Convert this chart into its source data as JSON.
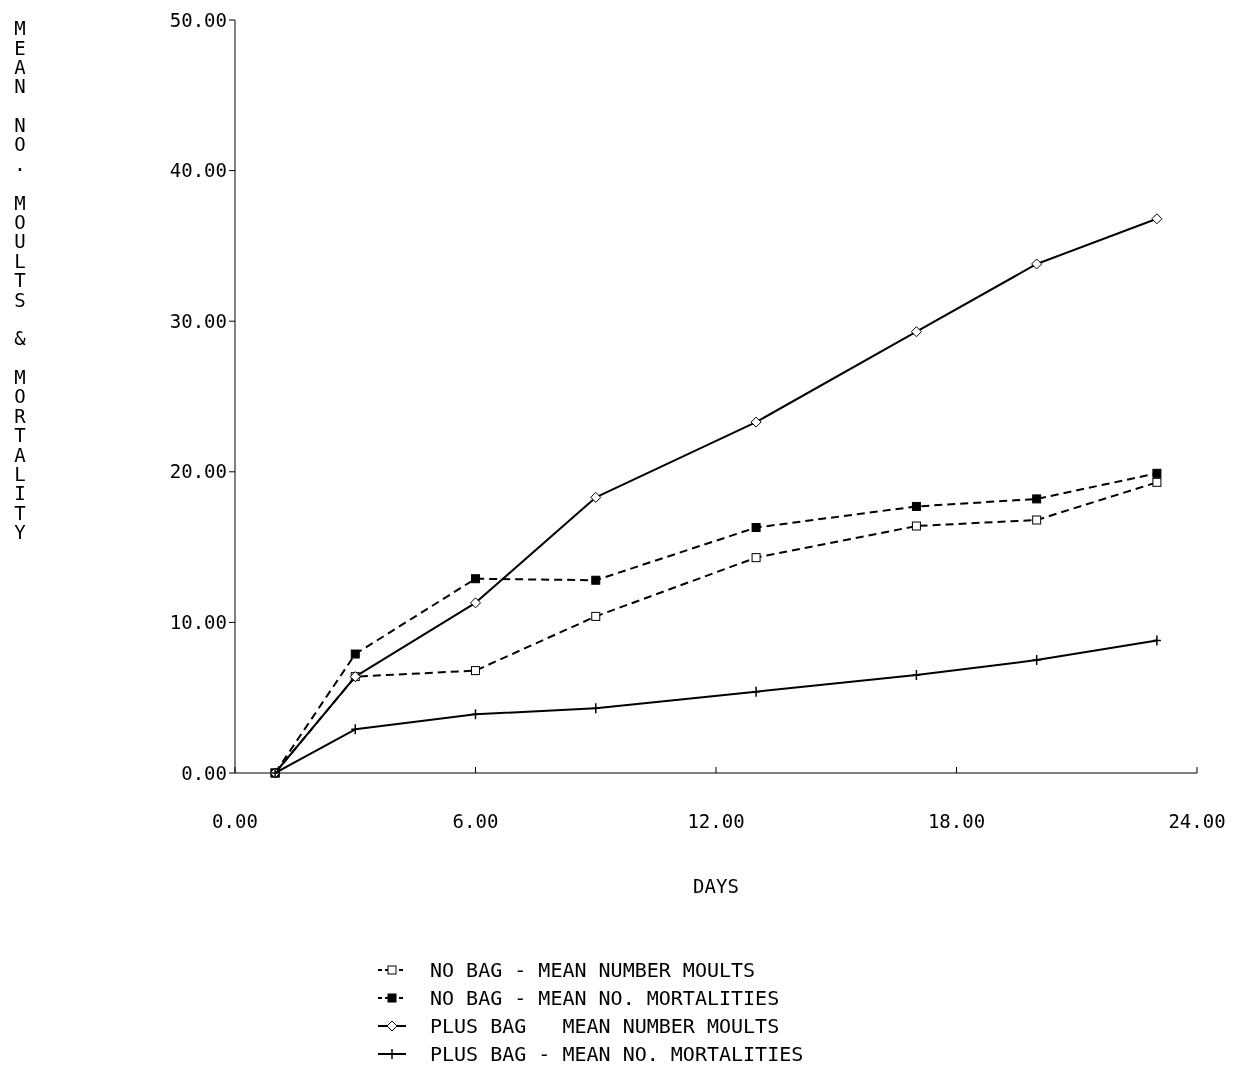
{
  "chart_data": {
    "type": "line",
    "xlabel": "DAYS",
    "ylabel": "MEAN NO. MOULTS & MORTALITY",
    "xlim": [
      0,
      24
    ],
    "ylim": [
      0,
      50
    ],
    "xticks": [
      {
        "value": 0,
        "label": "0.00"
      },
      {
        "value": 6,
        "label": "6.00"
      },
      {
        "value": 12,
        "label": "12.00"
      },
      {
        "value": 18,
        "label": "18.00"
      },
      {
        "value": 24,
        "label": "24.00"
      }
    ],
    "yticks": [
      {
        "value": 0,
        "label": "0.00"
      },
      {
        "value": 10,
        "label": "10.00"
      },
      {
        "value": 20,
        "label": "20.00"
      },
      {
        "value": 30,
        "label": "30.00"
      },
      {
        "value": 40,
        "label": "40.00"
      },
      {
        "value": 50,
        "label": "50.00"
      }
    ],
    "x": [
      1,
      3,
      6,
      9,
      13,
      17,
      20,
      23
    ],
    "legend": "bottom",
    "grid": false,
    "series": [
      {
        "name": "NO BAG - MEAN NUMBER MOULTS",
        "color": "#000000",
        "marker": "square",
        "line_style": "dashed",
        "values": [
          0,
          6.4,
          6.8,
          10.4,
          14.3,
          16.4,
          16.8,
          19.3
        ]
      },
      {
        "name": "NO BAG - MEAN NO. MORTALITIES",
        "color": "#000000",
        "marker": "square",
        "line_style": "dashed",
        "values": [
          0,
          7.9,
          12.9,
          12.8,
          16.3,
          17.7,
          18.2,
          19.9
        ]
      },
      {
        "name": "PLUS BAG   MEAN NUMBER MOULTS",
        "color": "#000000",
        "marker": "diamond",
        "line_style": "solid",
        "values": [
          0,
          6.4,
          11.3,
          18.3,
          23.3,
          29.3,
          33.8,
          36.8
        ]
      },
      {
        "name": "PLUS BAG - MEAN NO. MORTALITIES",
        "color": "#000000",
        "marker": "cross",
        "line_style": "solid",
        "values": [
          0,
          2.9,
          3.9,
          4.3,
          5.4,
          6.5,
          7.5,
          8.8
        ]
      }
    ]
  }
}
